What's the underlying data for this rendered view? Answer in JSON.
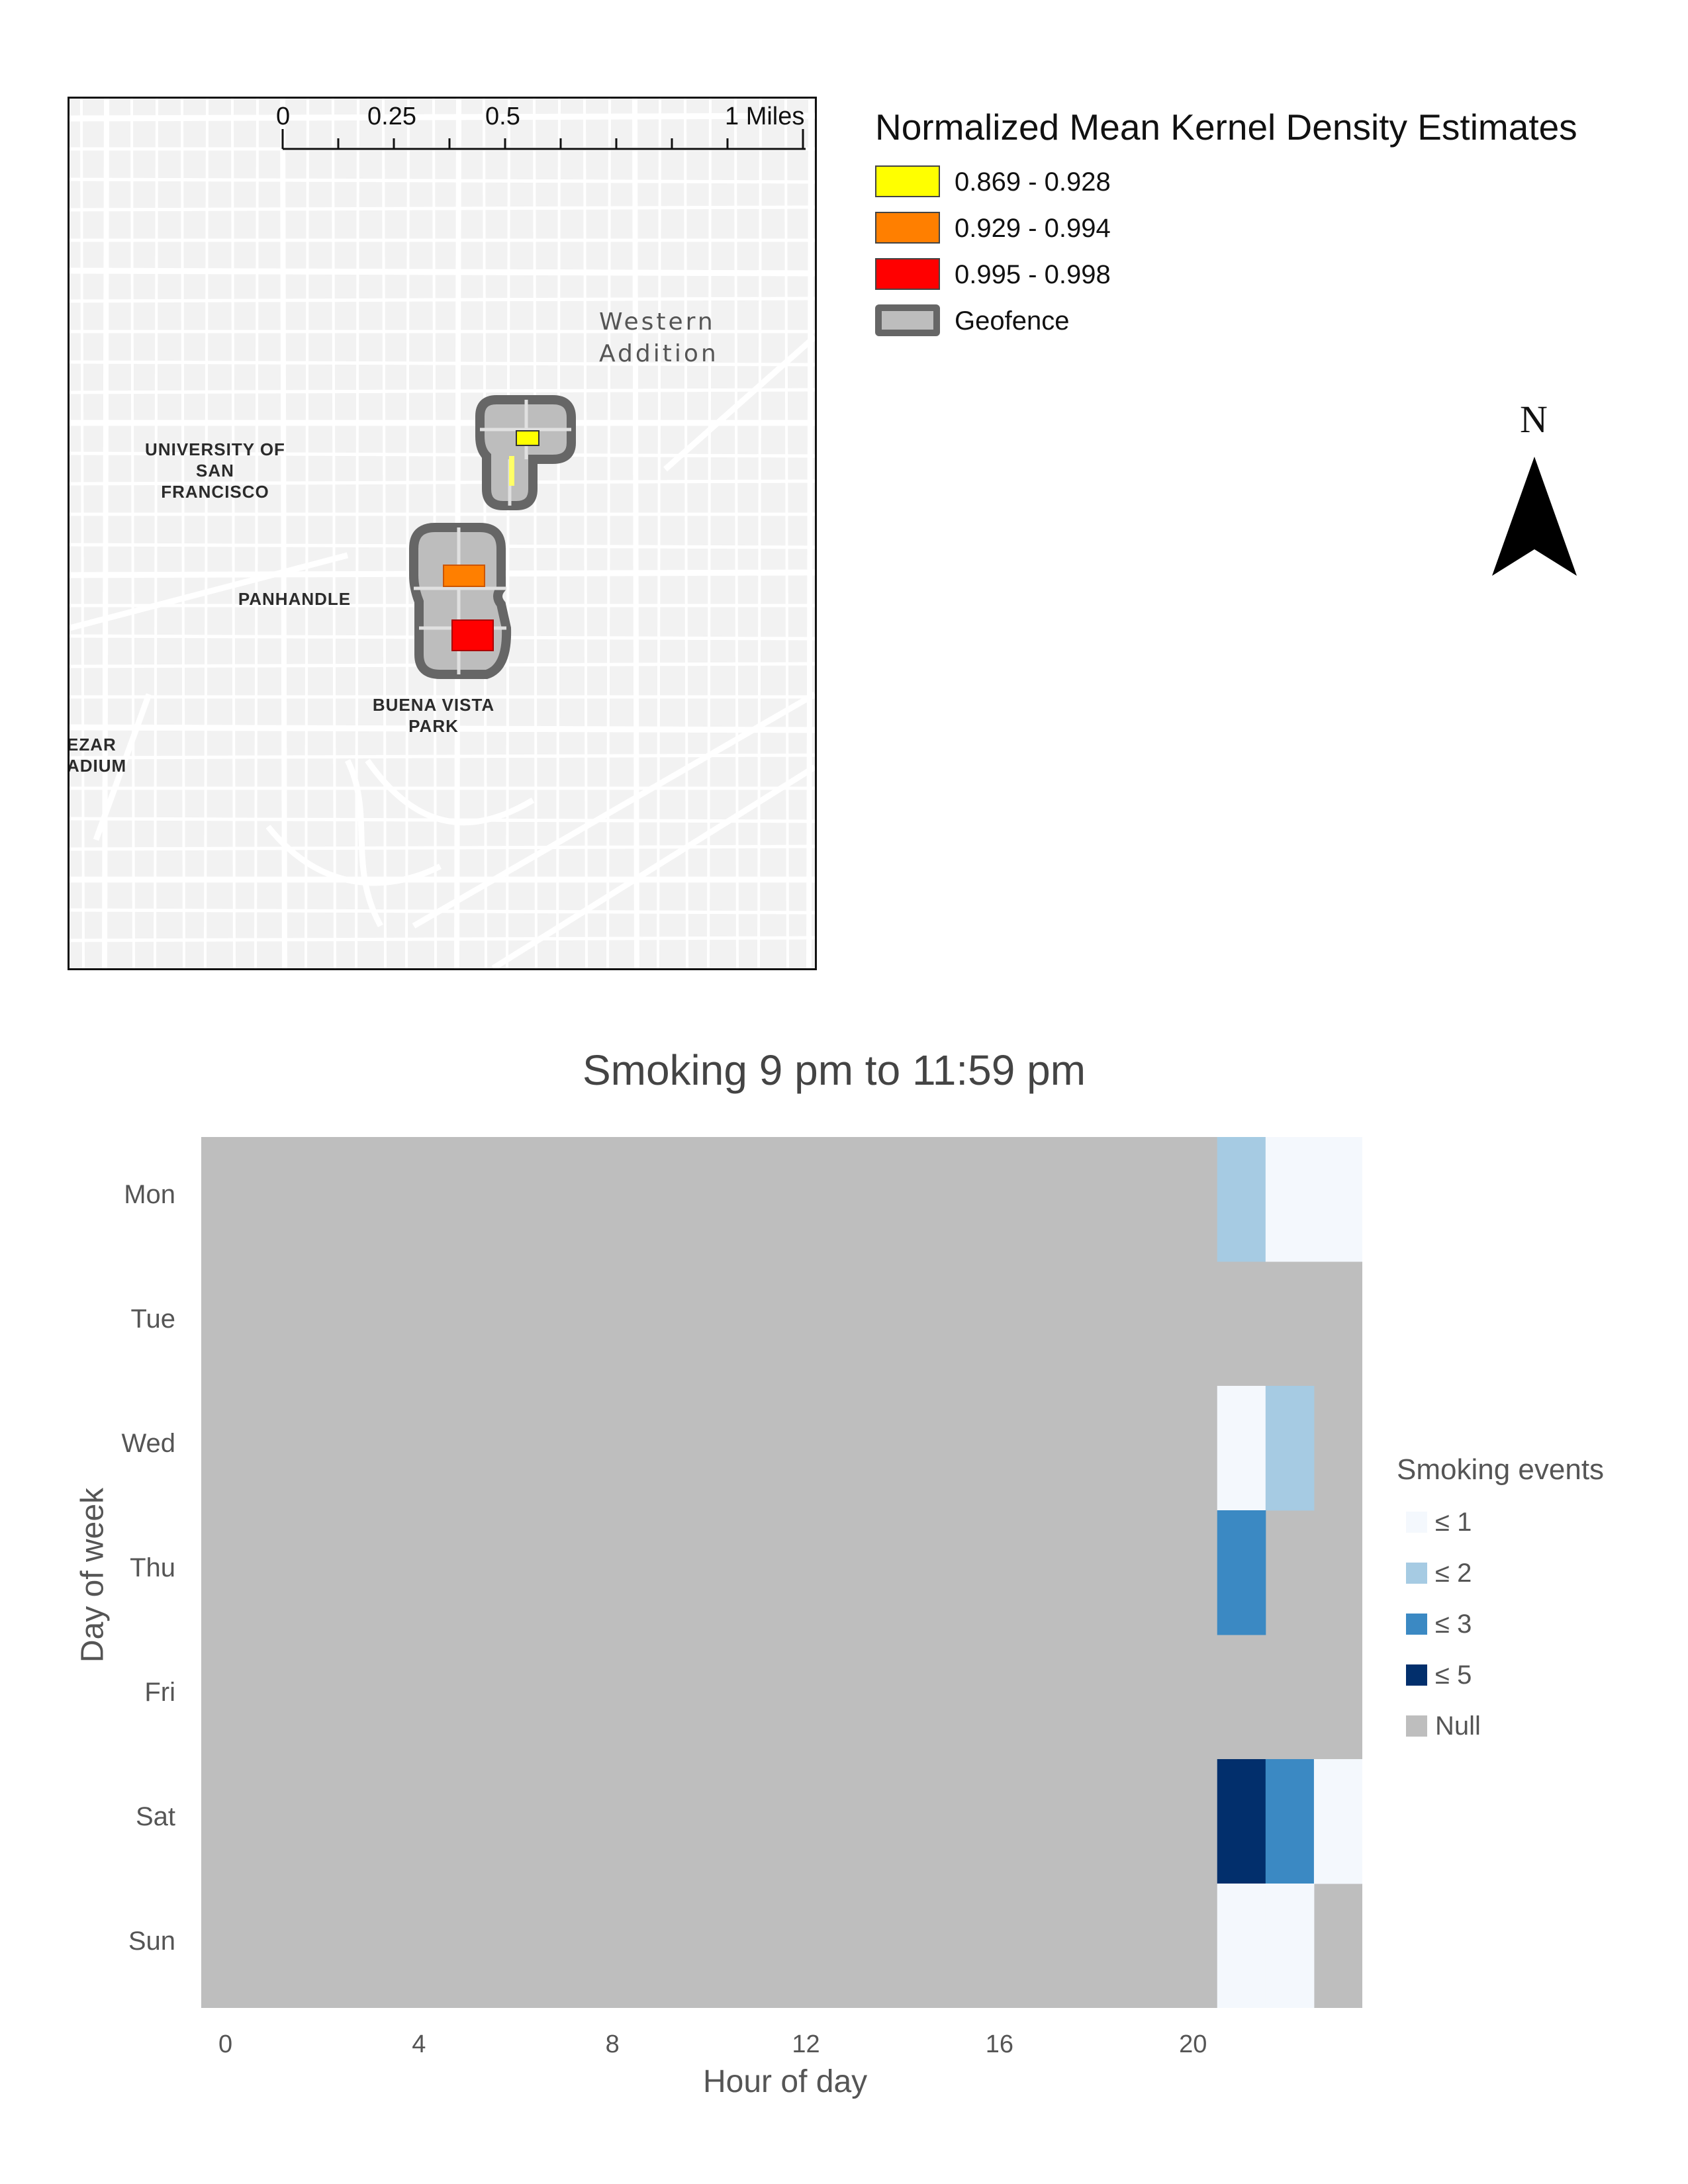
{
  "map": {
    "scale_bar": {
      "ticks": [
        "0",
        "0.25",
        "0.5",
        "1 Miles"
      ]
    },
    "place_labels": {
      "western_addition": [
        "Western",
        "Addition"
      ],
      "usf": [
        "UNIVERSITY OF",
        "SAN",
        "FRANCISCO"
      ],
      "panhandle": "PANHANDLE",
      "buena_vista": [
        "BUENA VISTA",
        "PARK"
      ],
      "stadium": [
        "EZAR",
        "ADIUM"
      ]
    },
    "legend": {
      "title": "Normalized Mean Kernel Density Estimates",
      "items": [
        {
          "label": "0.869 - 0.928",
          "color": "#ffff00"
        },
        {
          "label": "0.929 - 0.994",
          "color": "#ff7f00"
        },
        {
          "label": "0.995 - 0.998",
          "color": "#ff0000"
        },
        {
          "label": "Geofence",
          "color": "#bdbdbd"
        }
      ]
    },
    "north_arrow": {
      "label": "N"
    }
  },
  "chart_data": {
    "type": "heatmap",
    "title": "Smoking 9 pm to 11:59 pm",
    "xlabel": "Hour of day",
    "ylabel": "Day of week",
    "x_ticks": [
      "0",
      "4",
      "8",
      "12",
      "16",
      "20"
    ],
    "x_tick_values": [
      0,
      4,
      8,
      12,
      16,
      20
    ],
    "xlim": [
      -0.5,
      23.5
    ],
    "y": [
      "Mon",
      "Tue",
      "Wed",
      "Thu",
      "Fri",
      "Sat",
      "Sun"
    ],
    "x": [
      21,
      22,
      23
    ],
    "values_note": "rows = days, cols = hours 21,22,23; categories: 1 = ≤ 1, 2 = ≤ 2, 3 = ≤ 3, 5 = ≤ 5, null = Null (hours 0–20 Null for all days)",
    "values": [
      [
        2,
        1,
        1
      ],
      [
        null,
        null,
        null
      ],
      [
        1,
        2,
        null
      ],
      [
        3,
        null,
        null
      ],
      [
        null,
        null,
        null
      ],
      [
        5,
        3,
        1
      ],
      [
        1,
        1,
        null
      ]
    ],
    "legend": {
      "title": "Smoking events",
      "items": [
        {
          "label": "≤ 1",
          "color": "#f4f8fd"
        },
        {
          "label": "≤ 2",
          "color": "#a6cbe3"
        },
        {
          "label": "≤ 3",
          "color": "#3b89c3"
        },
        {
          "label": "≤ 5",
          "color": "#022f6c"
        },
        {
          "label": "Null",
          "color": "#bebebe"
        }
      ]
    }
  }
}
